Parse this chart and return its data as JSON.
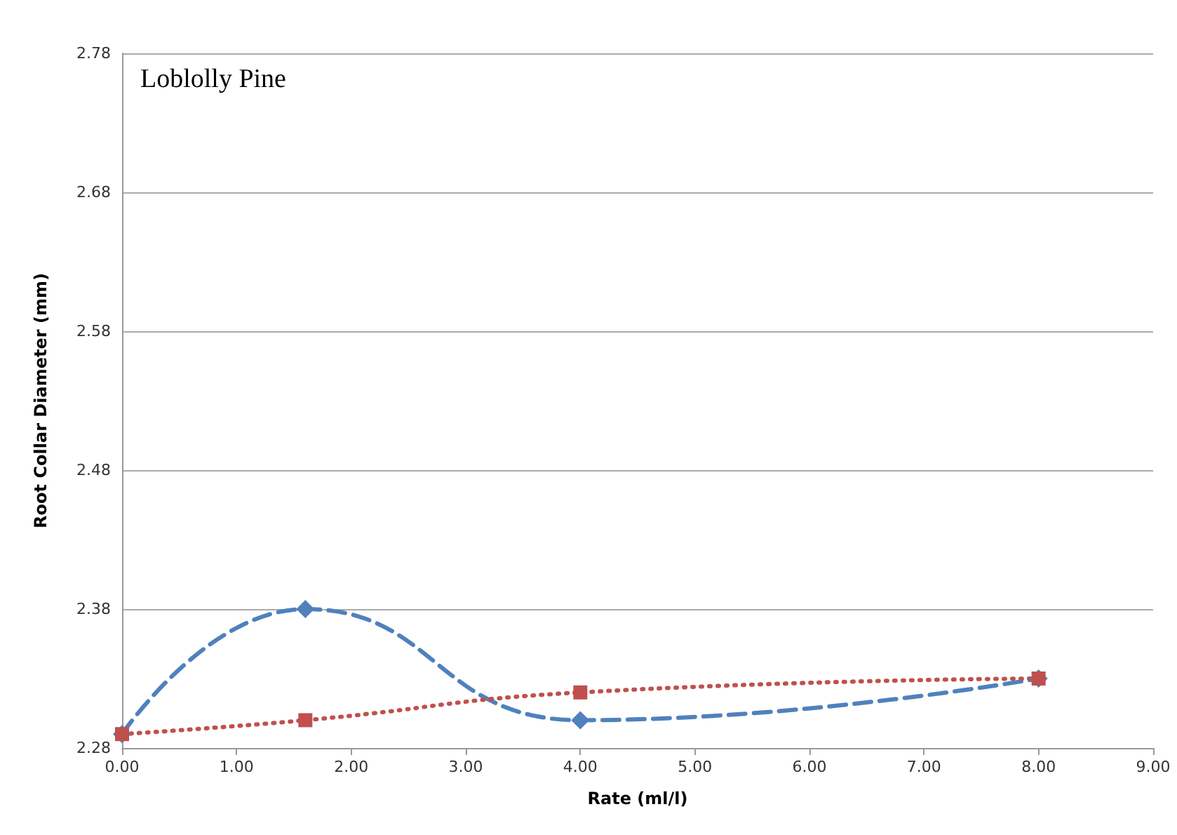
{
  "chart_data": {
    "type": "line",
    "title": "Loblolly Pine",
    "xlabel": "Rate (ml/l)",
    "ylabel": "Root Collar Diameter (mm)",
    "x": [
      0,
      1.6,
      4,
      8
    ],
    "series": [
      {
        "color": "#4f81bd",
        "values": [
          2.29,
          2.38,
          2.3,
          2.33
        ],
        "marker": "diamond",
        "line_style": "dashed"
      },
      {
        "color": "#c0504d",
        "values": [
          2.29,
          2.3,
          2.32,
          2.33
        ],
        "marker": "square",
        "line_style": "dotted"
      }
    ],
    "xlim": [
      0,
      9
    ],
    "xticks": [
      {
        "value": 0,
        "label": "0.00"
      },
      {
        "value": 1,
        "label": "1.00"
      },
      {
        "value": 2,
        "label": "2.00"
      },
      {
        "value": 3,
        "label": "3.00"
      },
      {
        "value": 4,
        "label": "4.00"
      },
      {
        "value": 5,
        "label": "5.00"
      },
      {
        "value": 6,
        "label": "6.00"
      },
      {
        "value": 7,
        "label": "7.00"
      },
      {
        "value": 8,
        "label": "8.00"
      },
      {
        "value": 9,
        "label": "9.00"
      }
    ],
    "ylim": [
      2.28,
      2.78
    ],
    "yticks": [
      2.28,
      2.38,
      2.48,
      2.58,
      2.68,
      2.78
    ],
    "grid": "y"
  }
}
